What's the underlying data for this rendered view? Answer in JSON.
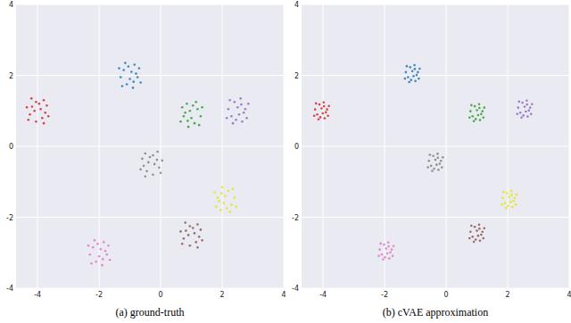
{
  "chart_data": [
    {
      "type": "scatter",
      "title": "(a) ground-truth",
      "xlim": [
        -4.7,
        4
      ],
      "ylim": [
        -4,
        4
      ],
      "xticks": [
        -4,
        -2,
        0,
        2,
        4
      ],
      "yticks": [
        -4,
        -2,
        0,
        2,
        4
      ],
      "grid": true,
      "marker": "circle",
      "series": [
        {
          "color": "#1f77b4",
          "x": [
            -0.95,
            -1.2,
            -0.75,
            -1.1,
            -0.85,
            -1.3,
            -1.0,
            -0.7,
            -1.15,
            -0.9,
            -1.35,
            -0.8,
            -1.05,
            -0.65,
            -1.25,
            -0.88
          ],
          "y": [
            2.1,
            2.15,
            1.95,
            1.75,
            2.3,
            1.95,
            1.9,
            2.2,
            2.35,
            1.65,
            2.2,
            2.05,
            2.25,
            1.8,
            1.7,
            1.82
          ]
        },
        {
          "color": "#d62728",
          "x": [
            -3.9,
            -3.85,
            -4.05,
            -4.25,
            -3.7,
            -4.05,
            -4.1,
            -3.8,
            -3.65,
            -4.35,
            -3.8,
            -3.95,
            -3.75,
            -4.2,
            -4.3,
            -4.18
          ],
          "y": [
            1.05,
            0.8,
            1.25,
            0.9,
            1.15,
            0.7,
            1.0,
            1.3,
            0.85,
            1.1,
            0.65,
            1.2,
            0.95,
            1.35,
            0.75,
            1.12
          ]
        },
        {
          "color": "#2ca02c",
          "x": [
            0.95,
            1.2,
            0.75,
            1.1,
            0.85,
            1.3,
            1.0,
            0.7,
            1.15,
            0.9,
            1.35,
            0.8,
            1.05,
            0.65,
            1.25,
            0.88
          ],
          "y": [
            1.0,
            1.05,
            0.85,
            0.65,
            1.2,
            0.85,
            0.8,
            1.1,
            1.25,
            0.55,
            1.1,
            0.95,
            1.15,
            0.7,
            0.6,
            0.72
          ]
        },
        {
          "color": "#9467bd",
          "x": [
            2.55,
            2.3,
            2.75,
            2.4,
            2.65,
            2.2,
            2.5,
            2.8,
            2.35,
            2.6,
            2.15,
            2.7,
            2.45,
            2.85,
            2.25,
            2.62
          ],
          "y": [
            0.9,
            0.85,
            1.05,
            1.25,
            0.7,
            1.05,
            1.1,
            0.8,
            0.65,
            1.35,
            0.8,
            0.95,
            0.75,
            1.2,
            1.3,
            1.18
          ]
        },
        {
          "color": "#7f7f7f",
          "x": [
            -0.4,
            -0.45,
            -0.25,
            -0.05,
            -0.6,
            -0.25,
            -0.2,
            -0.5,
            -0.65,
            0.05,
            -0.5,
            -0.35,
            -0.55,
            -0.1,
            0.0,
            -0.12
          ],
          "y": [
            -0.45,
            -0.7,
            -0.25,
            -0.6,
            -0.35,
            -0.8,
            -0.5,
            -0.2,
            -0.65,
            -0.4,
            -0.85,
            -0.3,
            -0.55,
            -0.15,
            -0.75,
            -0.38
          ]
        },
        {
          "color": "#e6e600",
          "x": [
            2.05,
            2.3,
            1.85,
            2.2,
            1.95,
            2.4,
            2.1,
            1.8,
            2.25,
            2.0,
            2.45,
            1.9,
            2.15,
            1.75,
            2.35,
            1.98
          ],
          "y": [
            -1.6,
            -1.65,
            -1.45,
            -1.25,
            -1.8,
            -1.45,
            -1.4,
            -1.7,
            -1.85,
            -1.15,
            -1.7,
            -1.55,
            -1.75,
            -1.3,
            -1.2,
            -1.32
          ]
        },
        {
          "color": "#8c564b",
          "x": [
            1.1,
            1.15,
            0.95,
            0.75,
            1.3,
            0.95,
            0.9,
            1.2,
            1.35,
            0.65,
            1.2,
            1.05,
            1.25,
            0.8,
            0.7,
            0.82
          ],
          "y": [
            -2.45,
            -2.7,
            -2.25,
            -2.6,
            -2.35,
            -2.8,
            -2.5,
            -2.2,
            -2.65,
            -2.4,
            -2.85,
            -2.3,
            -2.55,
            -2.15,
            -2.75,
            -2.38
          ]
        },
        {
          "color": "#e377c2",
          "x": [
            -1.95,
            -2.2,
            -1.75,
            -2.1,
            -1.85,
            -2.3,
            -2.0,
            -1.7,
            -2.15,
            -1.9,
            -2.35,
            -1.8,
            -2.05,
            -1.65,
            -2.25,
            -1.88
          ],
          "y": [
            -2.9,
            -2.85,
            -3.05,
            -3.25,
            -2.7,
            -3.05,
            -3.1,
            -2.8,
            -2.65,
            -3.35,
            -2.8,
            -2.95,
            -2.75,
            -3.2,
            -3.3,
            -3.18
          ]
        }
      ]
    },
    {
      "type": "scatter",
      "title": "(b) cVAE approximation",
      "xlim": [
        -4.7,
        4
      ],
      "ylim": [
        -4,
        4
      ],
      "xticks": [
        -4,
        -2,
        0,
        2,
        4
      ],
      "yticks": [
        -4,
        -2,
        0,
        2,
        4
      ],
      "grid": true,
      "marker": "circle",
      "series": [
        {
          "color": "#1f77b4",
          "x": [
            -1.06,
            -1.24,
            -0.92,
            -1.17,
            -1.0,
            -1.31,
            -1.1,
            -0.89,
            -1.2,
            -1.03,
            -1.34,
            -0.96,
            -1.14,
            -0.86,
            -1.28,
            -1.02
          ],
          "y": [
            1.98,
            1.95,
            2.09,
            2.23,
            1.84,
            2.09,
            2.12,
            1.91,
            1.81,
            2.29,
            1.91,
            2.01,
            1.87,
            2.19,
            2.26,
            2.18
          ]
        },
        {
          "color": "#d62728",
          "x": [
            -4.01,
            -4.19,
            -3.87,
            -4.12,
            -3.95,
            -4.26,
            -4.05,
            -3.84,
            -4.15,
            -3.98,
            -4.29,
            -3.91,
            -4.09,
            -3.81,
            -4.23,
            -3.97
          ],
          "y": [
            0.93,
            0.9,
            1.04,
            1.18,
            0.79,
            1.04,
            1.07,
            0.86,
            0.76,
            1.24,
            0.86,
            0.96,
            0.82,
            1.14,
            1.21,
            1.13
          ]
        },
        {
          "color": "#2ca02c",
          "x": [
            1.04,
            0.86,
            1.18,
            0.93,
            1.1,
            0.79,
            1.0,
            1.21,
            0.9,
            1.07,
            0.76,
            1.14,
            0.96,
            1.24,
            0.82,
            1.08
          ],
          "y": [
            0.88,
            0.85,
            0.99,
            1.13,
            0.74,
            0.99,
            1.02,
            0.81,
            0.71,
            1.19,
            0.81,
            0.91,
            0.77,
            1.09,
            1.16,
            1.08
          ]
        },
        {
          "color": "#9467bd",
          "x": [
            2.59,
            2.41,
            2.73,
            2.48,
            2.65,
            2.34,
            2.55,
            2.76,
            2.45,
            2.62,
            2.31,
            2.69,
            2.51,
            2.79,
            2.37,
            2.63
          ],
          "y": [
            0.98,
            0.95,
            1.09,
            1.23,
            0.84,
            1.09,
            1.12,
            0.91,
            0.81,
            1.29,
            0.91,
            1.01,
            0.87,
            1.19,
            1.26,
            1.18
          ]
        },
        {
          "color": "#7f7f7f",
          "x": [
            -0.31,
            -0.49,
            -0.17,
            -0.42,
            -0.25,
            -0.56,
            -0.35,
            -0.14,
            -0.45,
            -0.28,
            -0.59,
            -0.21,
            -0.39,
            -0.11,
            -0.53,
            -0.27
          ],
          "y": [
            -0.52,
            -0.55,
            -0.41,
            -0.27,
            -0.66,
            -0.41,
            -0.38,
            -0.59,
            -0.69,
            -0.21,
            -0.59,
            -0.49,
            -0.63,
            -0.31,
            -0.24,
            -0.32
          ]
        },
        {
          "color": "#e6e600",
          "x": [
            2.09,
            1.91,
            2.23,
            1.98,
            2.15,
            1.84,
            2.05,
            2.26,
            1.95,
            2.12,
            1.81,
            2.19,
            2.01,
            2.29,
            1.87,
            2.13
          ],
          "y": [
            -1.57,
            -1.6,
            -1.46,
            -1.32,
            -1.71,
            -1.46,
            -1.43,
            -1.64,
            -1.74,
            -1.26,
            -1.64,
            -1.54,
            -1.68,
            -1.36,
            -1.29,
            -1.37
          ]
        },
        {
          "color": "#8c564b",
          "x": [
            1.04,
            0.86,
            1.18,
            0.93,
            1.1,
            0.79,
            1.0,
            1.21,
            0.9,
            1.07,
            0.76,
            1.14,
            0.96,
            1.24,
            0.82,
            1.08
          ],
          "y": [
            -2.52,
            -2.55,
            -2.41,
            -2.27,
            -2.66,
            -2.41,
            -2.38,
            -2.59,
            -2.69,
            -2.21,
            -2.59,
            -2.49,
            -2.63,
            -2.31,
            -2.24,
            -2.32
          ]
        },
        {
          "color": "#e377c2",
          "x": [
            -1.91,
            -2.09,
            -1.77,
            -2.02,
            -1.85,
            -2.16,
            -1.95,
            -1.74,
            -2.05,
            -1.88,
            -2.19,
            -1.81,
            -1.99,
            -1.71,
            -2.13,
            -1.87
          ],
          "y": [
            -3.02,
            -3.05,
            -2.91,
            -2.77,
            -3.16,
            -2.91,
            -2.88,
            -3.09,
            -3.19,
            -2.71,
            -3.09,
            -2.99,
            -3.13,
            -2.81,
            -2.74,
            -2.82
          ]
        }
      ]
    }
  ]
}
